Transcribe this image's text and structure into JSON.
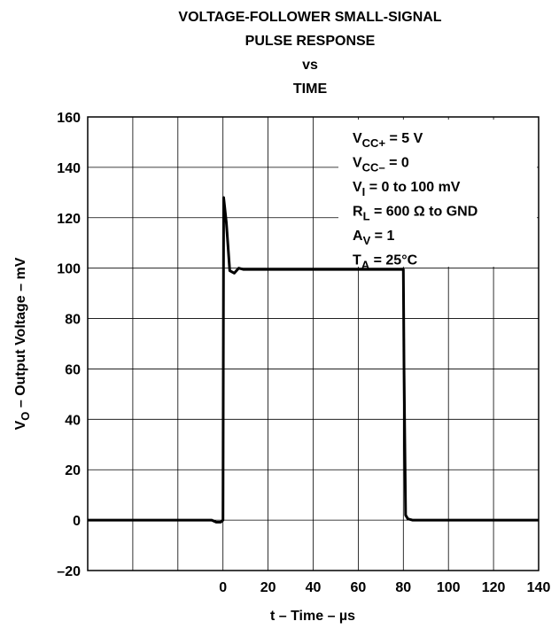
{
  "chart_data": {
    "type": "line",
    "title_lines": [
      "VOLTAGE-FOLLOWER SMALL-SIGNAL",
      "PULSE RESPONSE",
      "vs",
      "TIME"
    ],
    "xlabel": "t – Time – µs",
    "ylabel": {
      "main": "V",
      "sub": "O",
      "rest": " – Output Voltage – mV"
    },
    "annotations": [
      {
        "main": "V",
        "sub": "CC+",
        "rest": " = 5 V"
      },
      {
        "main": "V",
        "sub": "CC–",
        "rest": " = 0"
      },
      {
        "main": "V",
        "sub": "I",
        "rest": " = 0 to 100 mV"
      },
      {
        "main": "R",
        "sub": "L",
        "rest": " = 600 Ω to GND"
      },
      {
        "main": "A",
        "sub": "V",
        "rest": " = 1"
      },
      {
        "main": "T",
        "sub": "A",
        "rest": " = 25°C"
      }
    ],
    "x": [
      -60,
      -5,
      -3,
      -1,
      0,
      0.3,
      1.5,
      3,
      5,
      7,
      9,
      80,
      80.3,
      81,
      82,
      84,
      140
    ],
    "values": [
      0,
      0,
      -0.8,
      -0.8,
      0,
      128,
      118,
      99,
      98,
      100,
      99.5,
      99.5,
      60,
      2,
      0.5,
      0,
      0
    ],
    "color": "#000000",
    "xlim": [
      -60,
      140
    ],
    "xticks": [
      0,
      20,
      40,
      60,
      80,
      100,
      120,
      140
    ],
    "extra_xgrid": [
      -40,
      -20
    ],
    "ylim": [
      -20,
      160
    ],
    "yticks": [
      {
        "value": -20,
        "label": "–20"
      },
      0,
      20,
      40,
      60,
      80,
      100,
      120,
      140,
      160
    ],
    "grid": true
  }
}
